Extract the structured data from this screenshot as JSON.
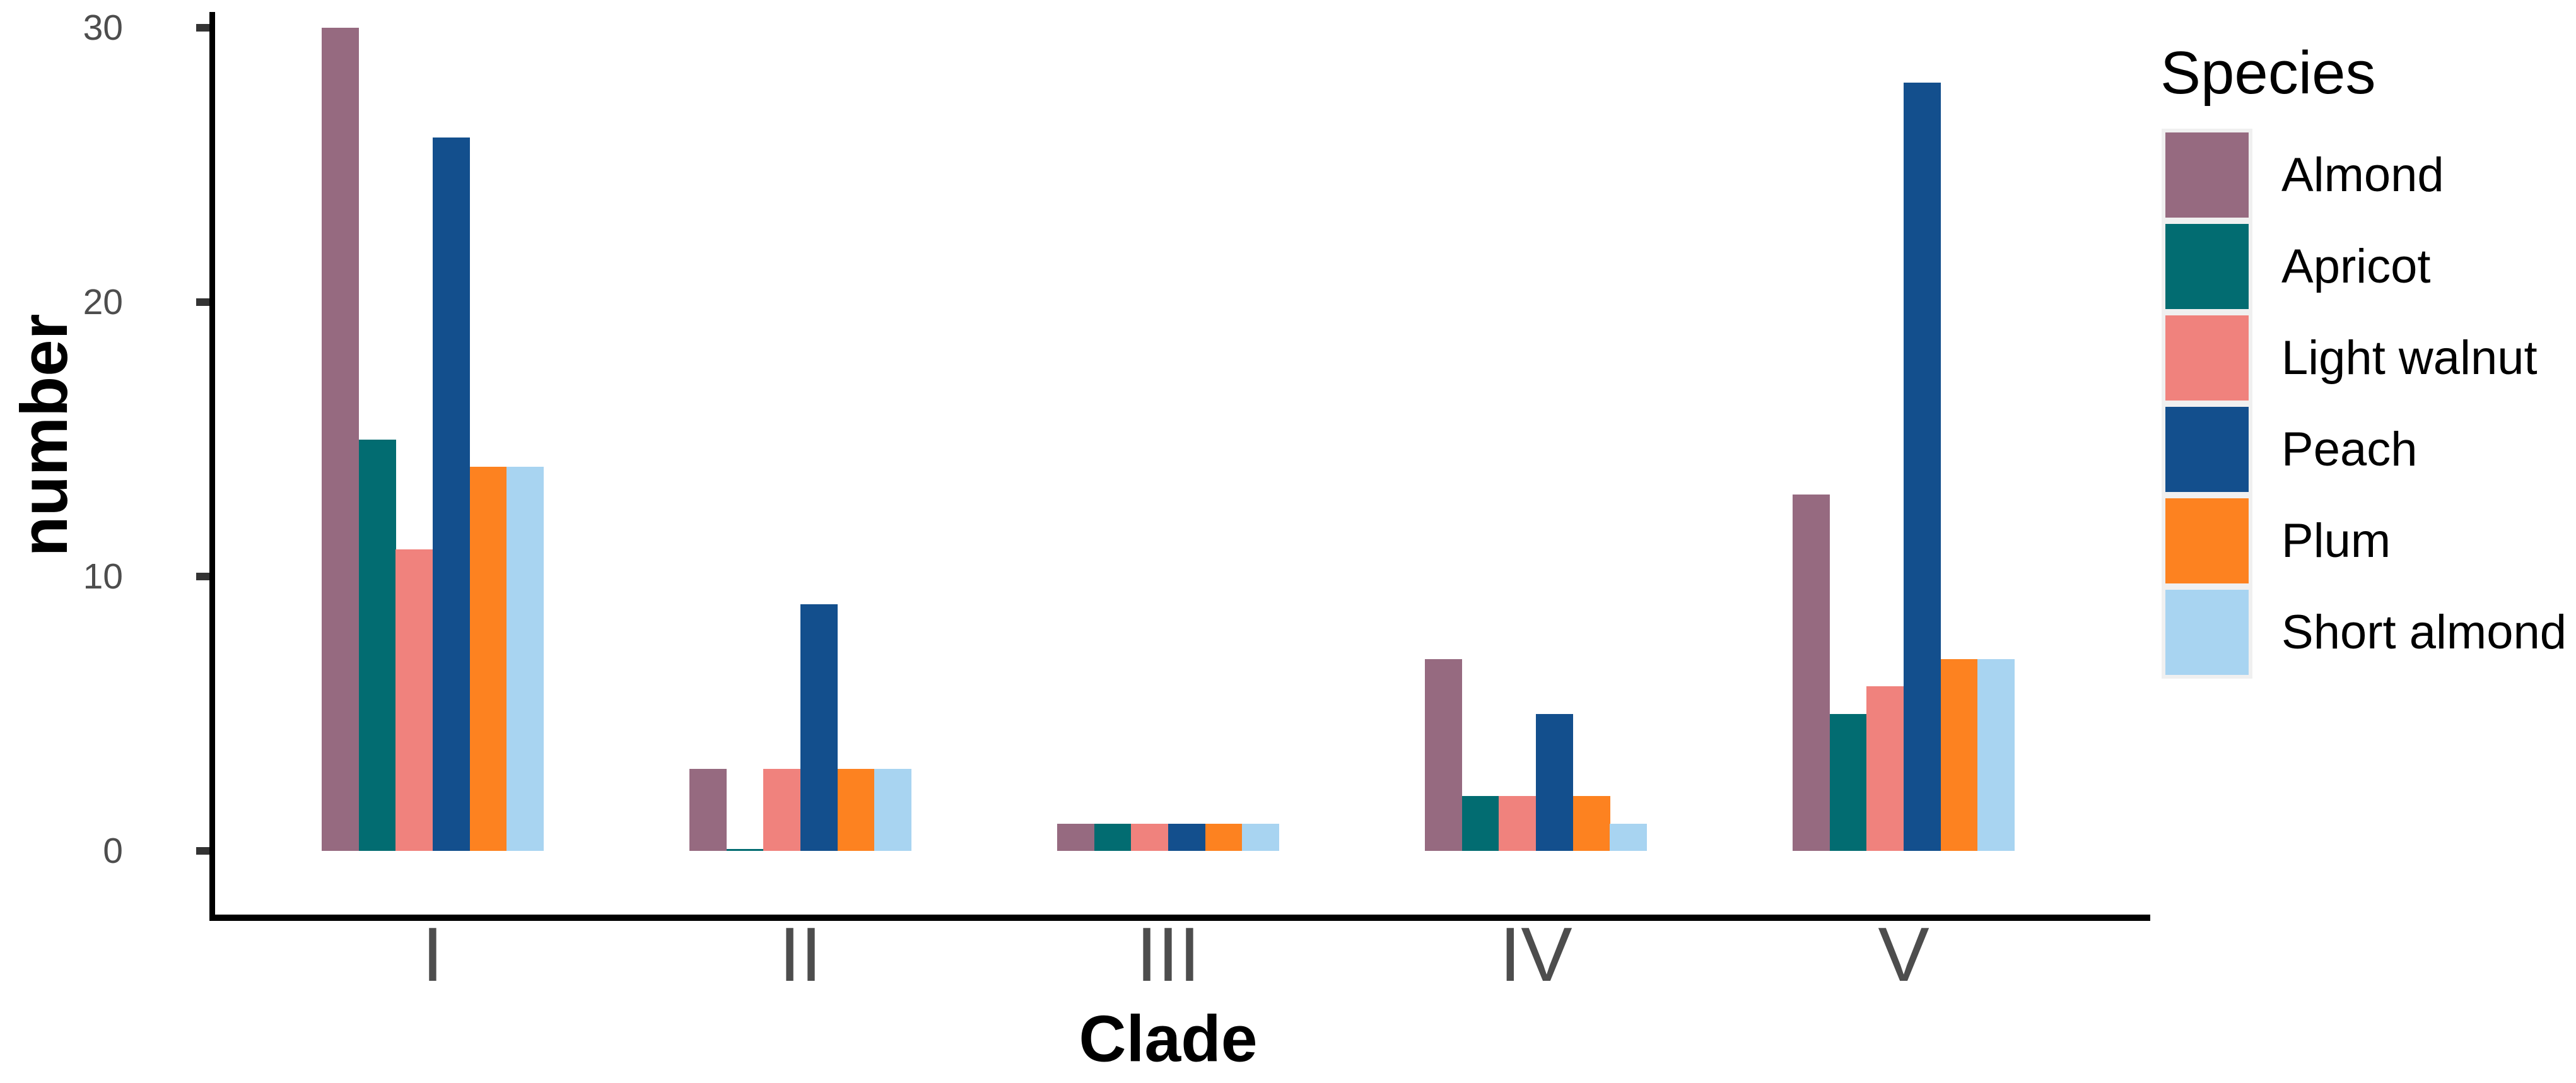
{
  "chart_data": {
    "type": "bar",
    "title": "",
    "xlabel": "Clade",
    "ylabel": "number",
    "categories": [
      "I",
      "II",
      "III",
      "IV",
      "V"
    ],
    "series": [
      {
        "name": "Almond",
        "color": "#966A80",
        "values": [
          30,
          3,
          1,
          7,
          13
        ]
      },
      {
        "name": "Apricot",
        "color": "#026C71",
        "values": [
          15,
          0,
          1,
          2,
          5
        ]
      },
      {
        "name": "Light walnut",
        "color": "#F0827D",
        "values": [
          11,
          3,
          1,
          2,
          6
        ]
      },
      {
        "name": "Peach",
        "color": "#134F8D",
        "values": [
          26,
          9,
          1,
          5,
          28
        ]
      },
      {
        "name": "Plum",
        "color": "#FD8220",
        "values": [
          14,
          3,
          1,
          2,
          7
        ]
      },
      {
        "name": "Short almond",
        "color": "#A8D4F1",
        "values": [
          14,
          3,
          1,
          1,
          7
        ]
      }
    ],
    "y_ticks": [
      0,
      10,
      20,
      30
    ],
    "ylim": [
      0,
      31.5
    ],
    "grid": false,
    "legend_title": "Species",
    "legend_position": "right"
  },
  "style": {
    "background": "#FFFFFF",
    "axis_line_color": "#000000",
    "tick_color": "#333333",
    "tick_label_color": "#4D4D4D",
    "title_color": "#000000",
    "legend_key_bg": "#F0F0F0"
  }
}
